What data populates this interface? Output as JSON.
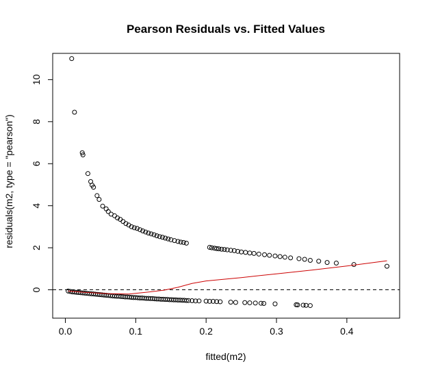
{
  "chart_data": {
    "type": "scatter",
    "title": "Pearson Residuals vs. Fitted Values",
    "xlabel": "fitted(m2)",
    "ylabel": "residuals(m2, type = \"pearson\")",
    "xlim": [
      -0.018,
      0.475
    ],
    "ylim": [
      -1.35,
      11.25
    ],
    "x_ticks": [
      0.0,
      0.1,
      0.2,
      0.3,
      0.4
    ],
    "x_tick_labels": [
      "0.0",
      "0.1",
      "0.2",
      "0.3",
      "0.4"
    ],
    "y_ticks": [
      0,
      2,
      4,
      6,
      8,
      10
    ],
    "y_tick_labels": [
      "0",
      "2",
      "4",
      "6",
      "8",
      "10"
    ],
    "reference_line": {
      "y": 0,
      "style": "dashed",
      "color": "#000000"
    },
    "colors": {
      "points": "#000000",
      "smooth": "#cc0000",
      "axis": "#000000"
    },
    "series": [
      {
        "kind": "points",
        "x": [
          0.009,
          0.013,
          0.024,
          0.025,
          0.032,
          0.036,
          0.038,
          0.04,
          0.045,
          0.048,
          0.053,
          0.058,
          0.061,
          0.065,
          0.07,
          0.074,
          0.078,
          0.082,
          0.086,
          0.09,
          0.094,
          0.098,
          0.102,
          0.106,
          0.11,
          0.114,
          0.118,
          0.122,
          0.126,
          0.13,
          0.134,
          0.138,
          0.142,
          0.146,
          0.15,
          0.155,
          0.16,
          0.164,
          0.168,
          0.172,
          0.205,
          0.208,
          0.212,
          0.215,
          0.218,
          0.222,
          0.226,
          0.23,
          0.235,
          0.24,
          0.245,
          0.25,
          0.256,
          0.262,
          0.268,
          0.275,
          0.283,
          0.29,
          0.298,
          0.305,
          0.312,
          0.32,
          0.332,
          0.34,
          0.348,
          0.36,
          0.372,
          0.385,
          0.41,
          0.457,
          0.004,
          0.007,
          0.01,
          0.013,
          0.016,
          0.019,
          0.022,
          0.025,
          0.028,
          0.031,
          0.034,
          0.037,
          0.04,
          0.043,
          0.046,
          0.049,
          0.052,
          0.055,
          0.058,
          0.061,
          0.064,
          0.067,
          0.07,
          0.073,
          0.076,
          0.079,
          0.082,
          0.085,
          0.088,
          0.091,
          0.094,
          0.097,
          0.1,
          0.103,
          0.106,
          0.109,
          0.112,
          0.115,
          0.118,
          0.121,
          0.124,
          0.127,
          0.13,
          0.133,
          0.136,
          0.139,
          0.142,
          0.145,
          0.148,
          0.151,
          0.154,
          0.157,
          0.16,
          0.163,
          0.166,
          0.169,
          0.172,
          0.175,
          0.18,
          0.185,
          0.19,
          0.2,
          0.205,
          0.21,
          0.215,
          0.22,
          0.235,
          0.242,
          0.255,
          0.262,
          0.27,
          0.278,
          0.282,
          0.298,
          0.328,
          0.33,
          0.338,
          0.342,
          0.348
        ],
        "y": [
          11.0,
          8.45,
          6.52,
          6.42,
          5.53,
          5.15,
          4.98,
          4.88,
          4.48,
          4.3,
          3.98,
          3.85,
          3.72,
          3.6,
          3.52,
          3.42,
          3.35,
          3.25,
          3.15,
          3.08,
          3.0,
          2.95,
          2.92,
          2.86,
          2.8,
          2.75,
          2.7,
          2.66,
          2.62,
          2.57,
          2.53,
          2.5,
          2.46,
          2.42,
          2.38,
          2.34,
          2.3,
          2.27,
          2.25,
          2.22,
          2.02,
          2.0,
          1.98,
          1.96,
          1.95,
          1.93,
          1.92,
          1.9,
          1.88,
          1.86,
          1.83,
          1.8,
          1.78,
          1.75,
          1.73,
          1.7,
          1.67,
          1.64,
          1.61,
          1.58,
          1.55,
          1.52,
          1.48,
          1.45,
          1.4,
          1.36,
          1.3,
          1.27,
          1.2,
          1.12,
          -0.06,
          -0.08,
          -0.1,
          -0.11,
          -0.12,
          -0.13,
          -0.14,
          -0.15,
          -0.16,
          -0.17,
          -0.18,
          -0.19,
          -0.2,
          -0.21,
          -0.22,
          -0.23,
          -0.24,
          -0.25,
          -0.26,
          -0.27,
          -0.28,
          -0.29,
          -0.3,
          -0.31,
          -0.31,
          -0.32,
          -0.33,
          -0.34,
          -0.34,
          -0.35,
          -0.36,
          -0.37,
          -0.37,
          -0.38,
          -0.39,
          -0.39,
          -0.4,
          -0.41,
          -0.41,
          -0.42,
          -0.42,
          -0.43,
          -0.44,
          -0.44,
          -0.45,
          -0.45,
          -0.46,
          -0.46,
          -0.47,
          -0.47,
          -0.48,
          -0.48,
          -0.49,
          -0.49,
          -0.5,
          -0.5,
          -0.51,
          -0.51,
          -0.52,
          -0.53,
          -0.53,
          -0.54,
          -0.55,
          -0.55,
          -0.56,
          -0.57,
          -0.59,
          -0.6,
          -0.61,
          -0.62,
          -0.63,
          -0.64,
          -0.65,
          -0.67,
          -0.71,
          -0.72,
          -0.73,
          -0.74,
          -0.75
        ]
      },
      {
        "kind": "smooth",
        "x": [
          0.004,
          0.03,
          0.06,
          0.09,
          0.12,
          0.14,
          0.16,
          0.18,
          0.2,
          0.25,
          0.3,
          0.35,
          0.4,
          0.457
        ],
        "y": [
          -0.06,
          -0.13,
          -0.18,
          -0.2,
          -0.1,
          -0.02,
          0.12,
          0.3,
          0.42,
          0.58,
          0.76,
          0.94,
          1.13,
          1.38
        ]
      }
    ]
  }
}
